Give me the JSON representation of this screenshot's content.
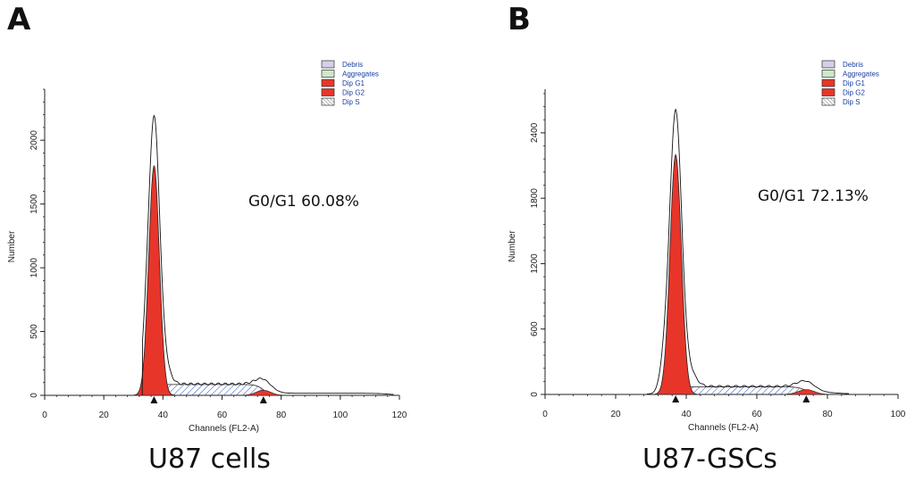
{
  "chart_data": [
    {
      "panel": "A",
      "type": "histogram",
      "caption": "U87 cells",
      "xlabel": "Channels (FL2-A)",
      "ylabel": "Number",
      "xlim": [
        0,
        120
      ],
      "ylim": [
        0,
        2400
      ],
      "xticks": [
        0,
        20,
        40,
        60,
        80,
        100,
        120
      ],
      "yticks": [
        0,
        500,
        1000,
        1500,
        2000
      ],
      "annotation": "G0/G1 60.08%",
      "legend": [
        "Debris",
        "Aggregates",
        "Dip G1",
        "Dip G2",
        "Dip S"
      ],
      "legend_placement": "top-right",
      "markers_x": [
        37,
        74
      ],
      "g1": {
        "mean": 37,
        "sd": 1.8,
        "peak": 1800
      },
      "g2": {
        "mean": 74,
        "sd": 2.5,
        "peak": 40
      },
      "s_phase": {
        "from": 37,
        "to": 74,
        "level": 85
      },
      "histogram_peak": 2100,
      "histogram_start": 33,
      "histogram_end": 118
    },
    {
      "panel": "B",
      "type": "histogram",
      "caption": "U87-GSCs",
      "xlabel": "Channels (FL2-A)",
      "ylabel": "Number",
      "xlim": [
        0,
        100
      ],
      "ylim": [
        0,
        2800
      ],
      "xticks": [
        0,
        20,
        40,
        60,
        80,
        100
      ],
      "yticks": [
        0,
        600,
        1200,
        1800,
        2400
      ],
      "annotation": "G0/G1 72.13%",
      "legend": [
        "Debris",
        "Aggregates",
        "Dip G1",
        "Dip G2",
        "Dip S"
      ],
      "legend_placement": "top-right",
      "markers_x": [
        37,
        74
      ],
      "g1": {
        "mean": 37,
        "sd": 1.6,
        "peak": 2200
      },
      "g2": {
        "mean": 74,
        "sd": 2.3,
        "peak": 45
      },
      "s_phase": {
        "from": 37,
        "to": 74,
        "level": 70
      },
      "histogram_peak": 2530,
      "histogram_start": 29,
      "histogram_end": 86
    }
  ],
  "colors": {
    "debris": "#d3d0e8",
    "aggregates": "#cfe8c8",
    "g1": "#e8352a",
    "g2": "#e8352a",
    "s_hatch": "#2a4fbf",
    "axis": "#222222"
  }
}
